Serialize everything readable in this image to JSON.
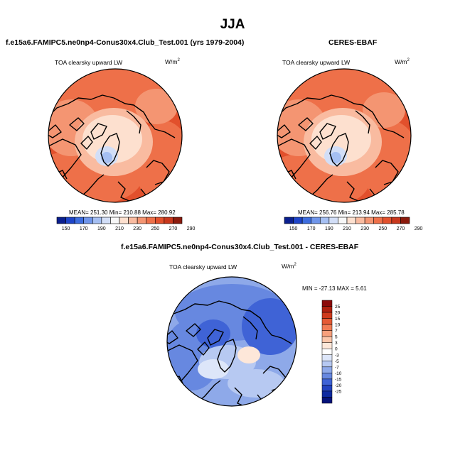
{
  "page": {
    "title": "JJA",
    "colors": {
      "land_outline": "#000000",
      "background": "#ffffff"
    }
  },
  "panels": [
    {
      "title": "f.e15a6.FAMIPC5.ne0np4-Conus30x4.Club_Test.001 (yrs 1979-2004)",
      "subtitle": "TOA clearsky upward LW",
      "units": "W/m",
      "units_exp": "2",
      "stats": "MEAN= 251.30  Min= 210.88  Max= 280.92"
    },
    {
      "title": "CERES-EBAF",
      "subtitle": "TOA clearsky upward LW",
      "units": "W/m",
      "units_exp": "2",
      "stats": "MEAN= 256.76  Min= 213.94  Max= 285.78"
    },
    {
      "title": "f.e15a6.FAMIPC5.ne0np4-Conus30x4.Club_Test.001 - CERES-EBAF",
      "subtitle": "TOA clearsky upward LW",
      "units": "W/m",
      "units_exp": "2",
      "stats": "MIN = -27.13 MAX =   5.61"
    }
  ],
  "chart_data": [
    {
      "type": "heatmap",
      "projection": "north-polar-stereographic",
      "title": "f.e15a6.FAMIPC5.ne0np4-Conus30x4.Club_Test.001 (yrs 1979-2004)",
      "variable": "TOA clearsky upward LW",
      "units": "W/m2",
      "mean": 251.3,
      "min": 210.88,
      "max": 280.92,
      "colorbar": {
        "orientation": "horizontal",
        "levels": [
          150,
          170,
          190,
          210,
          230,
          250,
          270,
          290
        ],
        "colors": [
          "#0a1f8f",
          "#1e44c8",
          "#3d6ddf",
          "#6f95ea",
          "#a5bff2",
          "#d2def7",
          "#f7f7f7",
          "#fde0cf",
          "#f9bba0",
          "#f49572",
          "#ee7049",
          "#e2502c",
          "#c8371c",
          "#8b1a0c"
        ]
      }
    },
    {
      "type": "heatmap",
      "projection": "north-polar-stereographic",
      "title": "CERES-EBAF",
      "variable": "TOA clearsky upward LW",
      "units": "W/m2",
      "mean": 256.76,
      "min": 213.94,
      "max": 285.78,
      "colorbar": {
        "orientation": "horizontal",
        "levels": [
          150,
          170,
          190,
          210,
          230,
          250,
          270,
          290
        ],
        "colors": [
          "#0a1f8f",
          "#1e44c8",
          "#3d6ddf",
          "#6f95ea",
          "#a5bff2",
          "#d2def7",
          "#f7f7f7",
          "#fde0cf",
          "#f9bba0",
          "#f49572",
          "#ee7049",
          "#e2502c",
          "#c8371c",
          "#8b1a0c"
        ]
      }
    },
    {
      "type": "heatmap",
      "projection": "north-polar-stereographic",
      "title": "f.e15a6.FAMIPC5.ne0np4-Conus30x4.Club_Test.001 - CERES-EBAF",
      "variable": "TOA clearsky upward LW",
      "units": "W/m2",
      "min": -27.13,
      "max": 5.61,
      "colorbar": {
        "orientation": "vertical",
        "levels": [
          25,
          20,
          15,
          10,
          7,
          5,
          3,
          0,
          -3,
          -5,
          -7,
          -10,
          -15,
          -20,
          -25
        ],
        "colors": [
          "#8b0a0a",
          "#b0200f",
          "#cf3a1c",
          "#e55a35",
          "#f17c55",
          "#f8a07c",
          "#fbc6aa",
          "#fde7d9",
          "#ffffff",
          "#dde6f9",
          "#b7c9f2",
          "#8ea9e9",
          "#6788e0",
          "#3f63d6",
          "#2343c0",
          "#0e2aa0",
          "#05137a"
        ]
      }
    }
  ]
}
